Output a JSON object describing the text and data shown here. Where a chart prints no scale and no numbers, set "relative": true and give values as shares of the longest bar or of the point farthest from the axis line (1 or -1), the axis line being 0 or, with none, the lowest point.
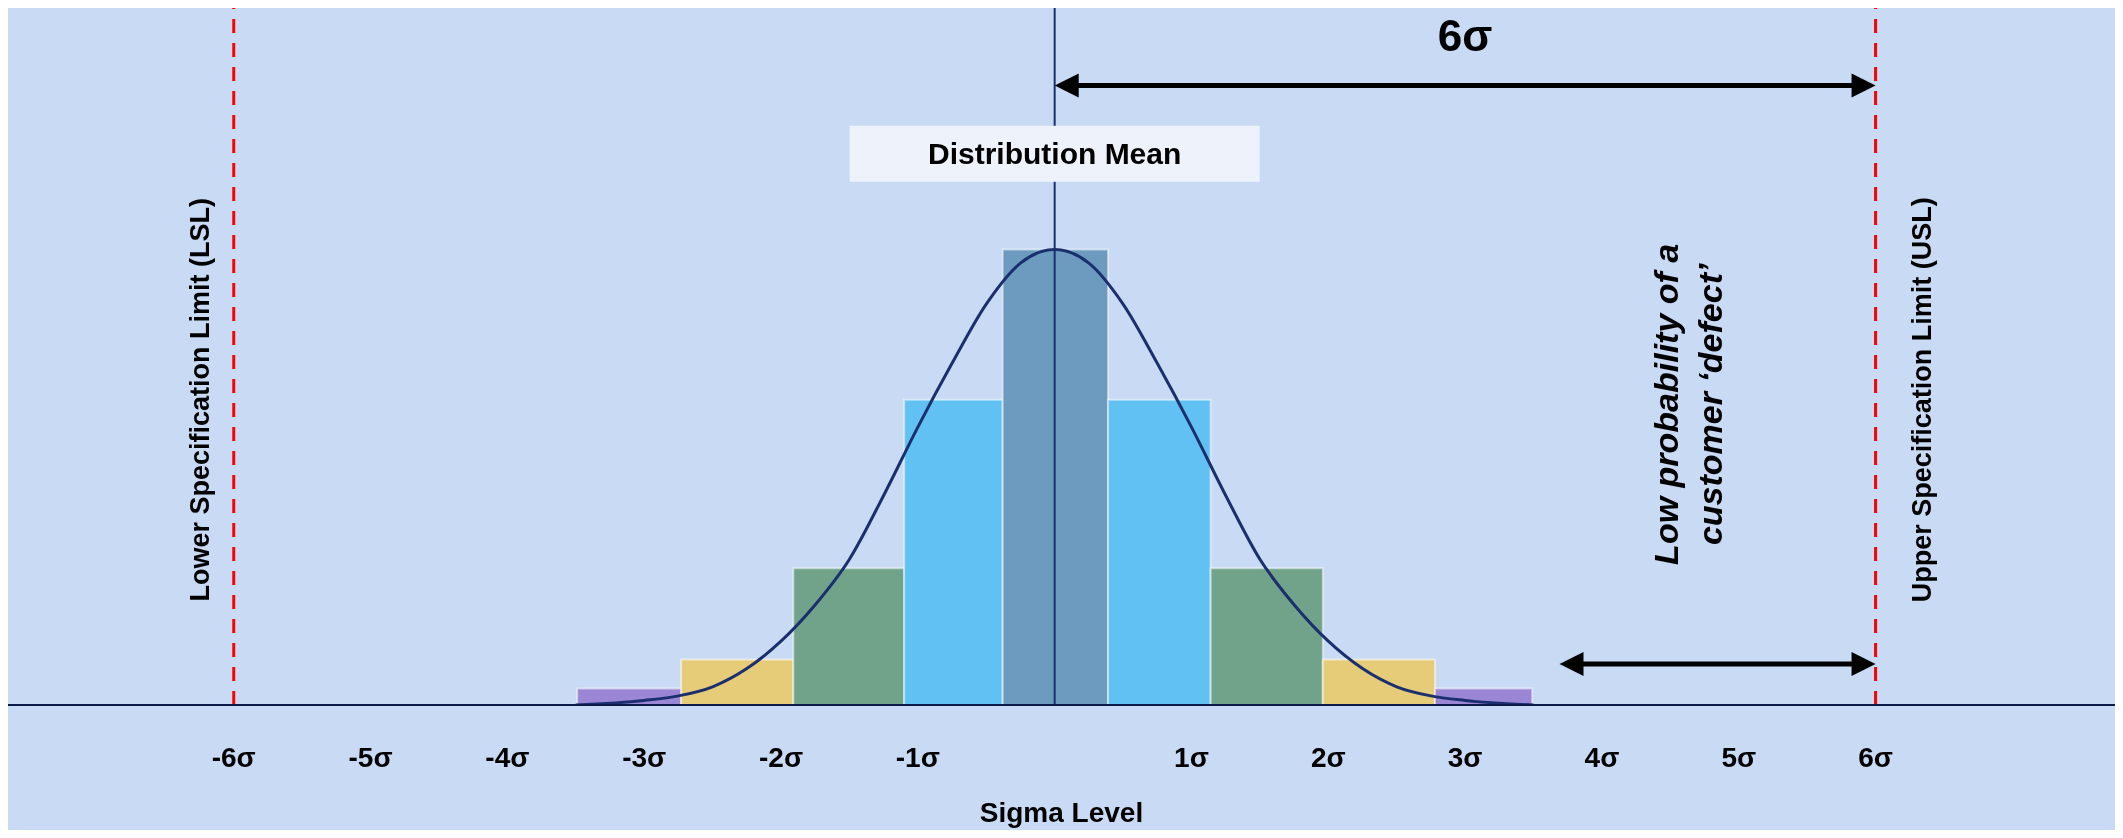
{
  "chart_data": {
    "type": "histogram",
    "relative": true,
    "xlabel": "Sigma Level",
    "bins": [
      -3.49,
      -2.73,
      -1.91,
      -1.1,
      -0.38,
      0.39,
      1.14,
      1.96,
      2.78,
      3.49
    ],
    "values": [
      0.036,
      0.1,
      0.3,
      0.67,
      1,
      0.67,
      0.3,
      0.1,
      0.036
    ],
    "colors": [
      "#9b86d6",
      "#e6cc78",
      "#70a38a",
      "#62c1f3",
      "#6d9bbf",
      "#62c1f3",
      "#70a38a",
      "#e6cc78",
      "#9b86d6"
    ],
    "series": [
      {
        "type": "line",
        "color": "#1b2f6e",
        "x": [
          -3.5,
          -3,
          -2.75,
          -2.5,
          -2.25,
          -2,
          -1.75,
          -1.5,
          -1.25,
          -1,
          -0.75,
          -0.5,
          -0.25,
          0,
          0.25,
          0.5,
          0.75,
          1,
          1.25,
          1.5,
          1.75,
          2,
          2.25,
          2.5,
          2.75,
          3,
          3.5
        ],
        "values": [
          0,
          0.01,
          0.02,
          0.04,
          0.08,
          0.14,
          0.22,
          0.32,
          0.46,
          0.61,
          0.75,
          0.88,
          0.97,
          1,
          0.97,
          0.88,
          0.75,
          0.61,
          0.46,
          0.32,
          0.22,
          0.14,
          0.08,
          0.04,
          0.02,
          0.01,
          0
        ]
      }
    ],
    "marker": "none",
    "line_style": "solid",
    "xlim": [
      -7.65,
      7.75
    ],
    "xticks": [
      {
        "value": -6,
        "label": "-6σ"
      },
      {
        "value": -5,
        "label": "-5σ"
      },
      {
        "value": -4,
        "label": "-4σ"
      },
      {
        "value": -3,
        "label": "-3σ"
      },
      {
        "value": -2,
        "label": "-2σ"
      },
      {
        "value": -1,
        "label": "-1σ"
      },
      {
        "value": 1,
        "label": "1σ"
      },
      {
        "value": 2,
        "label": "2σ"
      },
      {
        "value": 3,
        "label": "3σ"
      },
      {
        "value": 4,
        "label": "4σ"
      },
      {
        "value": 5,
        "label": "5σ"
      },
      {
        "value": 6,
        "label": "6σ"
      }
    ],
    "ref_lines": [
      {
        "axis": "x",
        "value": -6,
        "label": "Lower Specification Limit (LSL)",
        "color": "#ff0000",
        "line_style": "dashed"
      },
      {
        "axis": "x",
        "value": 0,
        "label": "Distribution Mean",
        "color": "#1b2f6e",
        "line_style": "solid"
      },
      {
        "axis": "x",
        "value": 6,
        "label": "Upper Specification Limit (USL)",
        "color": "#ff0000",
        "line_style": "dashed"
      }
    ],
    "annotations": [
      "6σ",
      "Low probability of a customer ‘defect’"
    ]
  }
}
